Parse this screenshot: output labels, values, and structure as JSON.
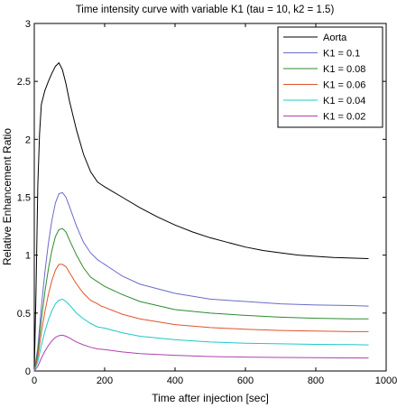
{
  "chart_data": {
    "type": "line",
    "title": "Time intensity curve with variable K1 (tau = 10, k2 = 1.5)",
    "xlabel": "Time after injection [sec]",
    "ylabel": "Relative Enhancement Ratio",
    "xlim": [
      0,
      1000
    ],
    "ylim": [
      0,
      3
    ],
    "xticks": [
      0,
      200,
      400,
      600,
      800,
      1000
    ],
    "yticks": [
      0,
      0.5,
      1,
      1.5,
      2,
      2.5,
      3
    ],
    "xtick_labels": [
      "0",
      "200",
      "400",
      "600",
      "800",
      "1000"
    ],
    "ytick_labels": [
      "0",
      "0.5",
      "1",
      "1.5",
      "2",
      "2.5",
      "3"
    ],
    "grid": false,
    "legend": "top-right",
    "series": [
      {
        "name": "Aorta",
        "color": "#000000",
        "x": [
          0,
          5,
          10,
          15,
          20,
          30,
          40,
          50,
          60,
          70,
          80,
          90,
          100,
          120,
          140,
          160,
          180,
          190,
          200,
          250,
          300,
          350,
          400,
          450,
          500,
          550,
          600,
          650,
          700,
          750,
          800,
          850,
          900,
          950
        ],
        "y": [
          0,
          0.7,
          1.6,
          2.05,
          2.3,
          2.42,
          2.5,
          2.57,
          2.63,
          2.66,
          2.6,
          2.48,
          2.33,
          2.08,
          1.87,
          1.72,
          1.63,
          1.61,
          1.59,
          1.5,
          1.41,
          1.33,
          1.26,
          1.2,
          1.15,
          1.11,
          1.07,
          1.04,
          1.02,
          1.0,
          0.99,
          0.98,
          0.975,
          0.97
        ]
      },
      {
        "name": "K1 = 0.1",
        "color": "#6b6bc8",
        "x": [
          0,
          10,
          20,
          30,
          40,
          50,
          60,
          70,
          80,
          90,
          100,
          120,
          140,
          160,
          180,
          190,
          200,
          250,
          300,
          400,
          500,
          600,
          700,
          800,
          900,
          950
        ],
        "y": [
          0,
          0.2,
          0.55,
          0.85,
          1.1,
          1.3,
          1.45,
          1.53,
          1.54,
          1.5,
          1.42,
          1.25,
          1.11,
          1.02,
          0.96,
          0.94,
          0.92,
          0.82,
          0.75,
          0.67,
          0.62,
          0.6,
          0.58,
          0.57,
          0.565,
          0.56
        ]
      },
      {
        "name": "K1 = 0.08",
        "color": "#2e8b2e",
        "x": [
          0,
          10,
          20,
          30,
          40,
          50,
          60,
          70,
          80,
          90,
          100,
          120,
          140,
          160,
          180,
          190,
          200,
          250,
          300,
          400,
          500,
          600,
          700,
          800,
          900,
          950
        ],
        "y": [
          0,
          0.16,
          0.44,
          0.68,
          0.88,
          1.04,
          1.16,
          1.22,
          1.23,
          1.2,
          1.13,
          1.0,
          0.89,
          0.81,
          0.77,
          0.75,
          0.73,
          0.66,
          0.6,
          0.53,
          0.5,
          0.48,
          0.465,
          0.455,
          0.45,
          0.45
        ]
      },
      {
        "name": "K1 = 0.06",
        "color": "#e0542a",
        "x": [
          0,
          10,
          20,
          30,
          40,
          50,
          60,
          70,
          80,
          90,
          100,
          120,
          140,
          160,
          180,
          190,
          200,
          250,
          300,
          400,
          500,
          600,
          700,
          800,
          900,
          950
        ],
        "y": [
          0,
          0.12,
          0.33,
          0.51,
          0.66,
          0.78,
          0.87,
          0.92,
          0.92,
          0.9,
          0.85,
          0.75,
          0.67,
          0.61,
          0.58,
          0.56,
          0.55,
          0.49,
          0.45,
          0.4,
          0.375,
          0.36,
          0.35,
          0.345,
          0.34,
          0.34
        ]
      },
      {
        "name": "K1 = 0.04",
        "color": "#1fc8c8",
        "x": [
          0,
          10,
          20,
          30,
          40,
          50,
          60,
          70,
          80,
          90,
          100,
          120,
          140,
          160,
          180,
          190,
          200,
          250,
          300,
          400,
          500,
          600,
          700,
          800,
          900,
          950
        ],
        "y": [
          0,
          0.08,
          0.22,
          0.34,
          0.44,
          0.52,
          0.58,
          0.61,
          0.62,
          0.6,
          0.57,
          0.5,
          0.45,
          0.41,
          0.38,
          0.375,
          0.37,
          0.33,
          0.3,
          0.27,
          0.25,
          0.24,
          0.235,
          0.23,
          0.228,
          0.225
        ]
      },
      {
        "name": "K1 = 0.02",
        "color": "#b040b0",
        "x": [
          0,
          10,
          20,
          30,
          40,
          50,
          60,
          70,
          80,
          90,
          100,
          120,
          140,
          160,
          180,
          190,
          200,
          250,
          300,
          400,
          500,
          600,
          700,
          800,
          900,
          950
        ],
        "y": [
          0,
          0.04,
          0.11,
          0.17,
          0.22,
          0.26,
          0.29,
          0.305,
          0.31,
          0.3,
          0.285,
          0.25,
          0.225,
          0.205,
          0.19,
          0.188,
          0.185,
          0.165,
          0.15,
          0.135,
          0.125,
          0.12,
          0.117,
          0.115,
          0.113,
          0.112
        ]
      }
    ]
  }
}
